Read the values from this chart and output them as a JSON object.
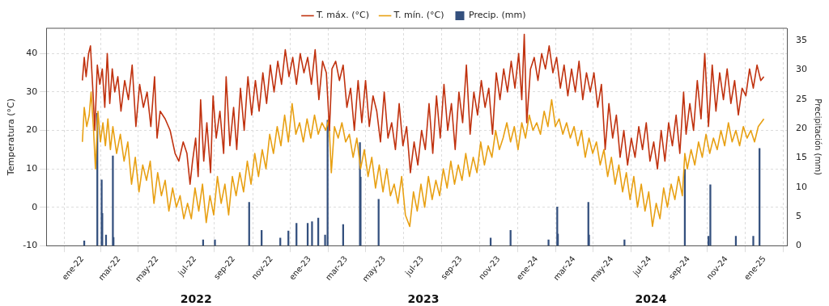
{
  "chart_data": {
    "type": "line",
    "xlim": [
      "2021-11-04",
      "2025-02-06"
    ],
    "xticks": [
      {
        "value": "2022-01-01",
        "label": "ene-22"
      },
      {
        "value": "2022-03-01",
        "label": "mar-22"
      },
      {
        "value": "2022-05-01",
        "label": "may-22"
      },
      {
        "value": "2022-07-01",
        "label": "jul-22"
      },
      {
        "value": "2022-09-01",
        "label": "sep-22"
      },
      {
        "value": "2022-11-01",
        "label": "nov-22"
      },
      {
        "value": "2023-01-01",
        "label": "ene-23"
      },
      {
        "value": "2023-03-01",
        "label": "mar-23"
      },
      {
        "value": "2023-05-01",
        "label": "may-23"
      },
      {
        "value": "2023-07-01",
        "label": "jul-23"
      },
      {
        "value": "2023-09-01",
        "label": "sep-23"
      },
      {
        "value": "2023-11-01",
        "label": "nov-23"
      },
      {
        "value": "2024-01-01",
        "label": "ene-24"
      },
      {
        "value": "2024-03-01",
        "label": "mar-24"
      },
      {
        "value": "2024-05-01",
        "label": "may-24"
      },
      {
        "value": "2024-07-01",
        "label": "jul-24"
      },
      {
        "value": "2024-09-01",
        "label": "sep-24"
      },
      {
        "value": "2024-11-01",
        "label": "nov-24"
      },
      {
        "value": "2025-01-01",
        "label": "ene-25"
      }
    ],
    "ylim": [
      -10,
      46.6
    ],
    "yticks": [
      -10,
      0,
      10,
      20,
      30,
      40
    ],
    "y2lim": [
      0,
      37.1
    ],
    "y2ticks": [
      0,
      5,
      10,
      15,
      20,
      25,
      30,
      35
    ],
    "ylabel": "Temperatura (°C)",
    "y2label": "Precipitación (mm)",
    "grid": true,
    "legend": "top",
    "marker": "none",
    "annotations": [
      "2022",
      "2023",
      "2024"
    ],
    "series": [
      {
        "name": "T. máx. (°C)",
        "color": "#c0320f",
        "x": [
          "2022-01-01",
          "2022-01-04",
          "2022-01-07",
          "2022-01-11",
          "2022-01-14",
          "2022-01-18",
          "2022-01-21",
          "2022-01-25",
          "2022-01-29",
          "2022-02-02",
          "2022-02-06",
          "2022-02-10",
          "2022-02-14",
          "2022-02-18",
          "2022-02-22",
          "2022-02-27",
          "2022-03-04",
          "2022-03-10",
          "2022-03-16",
          "2022-03-22",
          "2022-03-28",
          "2022-04-03",
          "2022-04-09",
          "2022-04-15",
          "2022-04-21",
          "2022-04-27",
          "2022-05-01",
          "2022-05-06",
          "2022-05-14",
          "2022-05-22",
          "2022-05-30",
          "2022-06-05",
          "2022-06-12",
          "2022-06-18",
          "2022-06-23",
          "2022-06-27",
          "2022-07-02",
          "2022-07-06",
          "2022-07-10",
          "2022-07-15",
          "2022-07-20",
          "2022-07-26",
          "2022-07-30",
          "2022-08-04",
          "2022-08-10",
          "2022-08-16",
          "2022-08-20",
          "2022-08-26",
          "2022-09-01",
          "2022-09-06",
          "2022-09-12",
          "2022-09-18",
          "2022-09-24",
          "2022-09-30",
          "2022-10-06",
          "2022-10-12",
          "2022-10-18",
          "2022-10-24",
          "2022-10-30",
          "2022-11-05",
          "2022-11-11",
          "2022-11-17",
          "2022-11-23",
          "2022-11-29",
          "2022-12-05",
          "2022-12-11",
          "2022-12-17",
          "2022-12-23",
          "2022-12-29",
          "2023-01-04",
          "2023-01-10",
          "2023-01-16",
          "2023-01-22",
          "2023-01-28",
          "2023-02-02",
          "2023-02-06",
          "2023-02-12",
          "2023-02-18",
          "2023-02-24",
          "2023-03-02",
          "2023-03-08",
          "2023-03-14",
          "2023-03-20",
          "2023-03-26",
          "2023-04-01",
          "2023-04-07",
          "2023-04-13",
          "2023-04-19",
          "2023-04-25",
          "2023-05-01",
          "2023-05-07",
          "2023-05-13",
          "2023-05-19",
          "2023-05-25",
          "2023-05-31",
          "2023-06-06",
          "2023-06-12",
          "2023-06-18",
          "2023-06-24",
          "2023-06-30",
          "2023-07-06",
          "2023-07-12",
          "2023-07-18",
          "2023-07-24",
          "2023-07-30",
          "2023-08-05",
          "2023-08-11",
          "2023-08-17",
          "2023-08-23",
          "2023-08-29",
          "2023-09-04",
          "2023-09-10",
          "2023-09-16",
          "2023-09-22",
          "2023-09-28",
          "2023-10-04",
          "2023-10-10",
          "2023-10-16",
          "2023-10-22",
          "2023-10-28",
          "2023-11-03",
          "2023-11-09",
          "2023-11-15",
          "2023-11-21",
          "2023-11-27",
          "2023-12-03",
          "2023-12-08",
          "2023-12-12",
          "2023-12-16",
          "2023-12-22",
          "2023-12-28",
          "2024-01-03",
          "2024-01-09",
          "2024-01-15",
          "2024-01-21",
          "2024-01-27",
          "2024-02-02",
          "2024-02-08",
          "2024-02-14",
          "2024-02-20",
          "2024-02-26",
          "2024-03-03",
          "2024-03-09",
          "2024-03-15",
          "2024-03-21",
          "2024-03-27",
          "2024-04-02",
          "2024-04-08",
          "2024-04-14",
          "2024-04-20",
          "2024-04-26",
          "2024-05-02",
          "2024-05-08",
          "2024-05-14",
          "2024-05-20",
          "2024-05-26",
          "2024-06-01",
          "2024-06-07",
          "2024-06-13",
          "2024-06-19",
          "2024-06-25",
          "2024-07-01",
          "2024-07-07",
          "2024-07-13",
          "2024-07-19",
          "2024-07-25",
          "2024-07-31",
          "2024-08-06",
          "2024-08-12",
          "2024-08-18",
          "2024-08-24",
          "2024-08-28",
          "2024-09-03",
          "2024-09-09",
          "2024-09-15",
          "2024-09-21",
          "2024-09-27",
          "2024-10-03",
          "2024-10-09",
          "2024-10-15",
          "2024-10-21",
          "2024-10-27",
          "2024-11-02",
          "2024-11-08",
          "2024-11-14",
          "2024-11-20",
          "2024-11-26",
          "2024-12-02",
          "2024-12-08",
          "2024-12-14",
          "2024-12-20",
          "2024-12-26",
          "2024-12-31"
        ],
        "values": [
          33,
          39,
          34,
          40,
          42,
          30,
          20,
          37,
          32,
          36,
          26,
          40,
          27,
          36,
          30,
          34,
          25,
          33,
          28,
          37,
          21,
          32,
          26,
          30,
          21,
          34,
          18,
          25,
          23,
          20,
          14,
          12,
          17,
          14,
          6,
          12,
          18,
          8,
          28,
          12,
          22,
          9,
          29,
          18,
          25,
          14,
          34,
          16,
          26,
          15,
          31,
          20,
          34,
          24,
          33,
          25,
          35,
          27,
          37,
          30,
          38,
          32,
          41,
          34,
          39,
          32,
          40,
          35,
          39,
          32,
          41,
          28,
          38,
          35,
          20,
          36,
          38,
          33,
          37,
          26,
          31,
          20,
          33,
          22,
          33,
          21,
          29,
          25,
          17,
          30,
          18,
          22,
          15,
          27,
          16,
          21,
          9,
          17,
          11,
          20,
          15,
          27,
          14,
          29,
          18,
          32,
          20,
          27,
          15,
          30,
          22,
          37,
          19,
          30,
          24,
          33,
          26,
          31,
          19,
          35,
          28,
          36,
          30,
          38,
          31,
          40,
          28,
          45,
          22,
          36,
          39,
          33,
          40,
          36,
          42,
          35,
          39,
          31,
          37,
          29,
          36,
          30,
          38,
          28,
          35,
          30,
          35,
          26,
          32,
          15,
          27,
          18,
          24,
          13,
          20,
          11,
          18,
          13,
          21,
          15,
          22,
          12,
          17,
          10,
          20,
          12,
          22,
          16,
          24,
          14,
          30,
          19,
          27,
          20,
          33,
          23,
          40,
          21,
          37,
          25,
          35,
          28,
          36,
          27,
          33,
          24,
          31,
          29,
          36,
          31,
          37,
          33,
          34
        ]
      },
      {
        "name": "T. mín. (°C)",
        "color": "#e8a013",
        "x": [
          "2022-01-01",
          "2022-01-04",
          "2022-01-08",
          "2022-01-12",
          "2022-01-15",
          "2022-01-19",
          "2022-01-22",
          "2022-01-26",
          "2022-01-30",
          "2022-02-03",
          "2022-02-07",
          "2022-02-11",
          "2022-02-15",
          "2022-02-19",
          "2022-02-25",
          "2022-03-03",
          "2022-03-09",
          "2022-03-15",
          "2022-03-21",
          "2022-03-27",
          "2022-04-02",
          "2022-04-08",
          "2022-04-14",
          "2022-04-20",
          "2022-04-26",
          "2022-05-02",
          "2022-05-08",
          "2022-05-14",
          "2022-05-20",
          "2022-05-26",
          "2022-06-01",
          "2022-06-07",
          "2022-06-13",
          "2022-06-19",
          "2022-06-25",
          "2022-07-01",
          "2022-07-07",
          "2022-07-13",
          "2022-07-19",
          "2022-07-25",
          "2022-07-31",
          "2022-08-06",
          "2022-08-12",
          "2022-08-18",
          "2022-08-24",
          "2022-08-30",
          "2022-09-05",
          "2022-09-11",
          "2022-09-17",
          "2022-09-23",
          "2022-09-29",
          "2022-10-05",
          "2022-10-11",
          "2022-10-17",
          "2022-10-23",
          "2022-10-29",
          "2022-11-04",
          "2022-11-10",
          "2022-11-16",
          "2022-11-22",
          "2022-11-28",
          "2022-12-04",
          "2022-12-10",
          "2022-12-16",
          "2022-12-22",
          "2022-12-28",
          "2023-01-03",
          "2023-01-09",
          "2023-01-15",
          "2023-01-21",
          "2023-01-27",
          "2023-02-01",
          "2023-02-05",
          "2023-02-10",
          "2023-02-16",
          "2023-02-22",
          "2023-02-28",
          "2023-03-06",
          "2023-03-12",
          "2023-03-18",
          "2023-03-24",
          "2023-03-30",
          "2023-04-05",
          "2023-04-11",
          "2023-04-17",
          "2023-04-23",
          "2023-04-29",
          "2023-05-05",
          "2023-05-11",
          "2023-05-17",
          "2023-05-23",
          "2023-05-29",
          "2023-06-04",
          "2023-06-11",
          "2023-06-17",
          "2023-06-23",
          "2023-06-29",
          "2023-07-05",
          "2023-07-11",
          "2023-07-17",
          "2023-07-23",
          "2023-07-29",
          "2023-08-04",
          "2023-08-10",
          "2023-08-16",
          "2023-08-22",
          "2023-08-28",
          "2023-09-03",
          "2023-09-09",
          "2023-09-15",
          "2023-09-21",
          "2023-09-27",
          "2023-10-03",
          "2023-10-09",
          "2023-10-15",
          "2023-10-21",
          "2023-10-27",
          "2023-11-02",
          "2023-11-08",
          "2023-11-14",
          "2023-11-20",
          "2023-11-26",
          "2023-12-02",
          "2023-12-08",
          "2023-12-14",
          "2023-12-20",
          "2023-12-26",
          "2024-01-01",
          "2024-01-07",
          "2024-01-13",
          "2024-01-19",
          "2024-01-25",
          "2024-01-31",
          "2024-02-06",
          "2024-02-12",
          "2024-02-18",
          "2024-02-24",
          "2024-03-01",
          "2024-03-07",
          "2024-03-13",
          "2024-03-19",
          "2024-03-25",
          "2024-03-31",
          "2024-04-06",
          "2024-04-12",
          "2024-04-18",
          "2024-04-24",
          "2024-04-30",
          "2024-05-06",
          "2024-05-12",
          "2024-05-18",
          "2024-05-24",
          "2024-05-30",
          "2024-06-05",
          "2024-06-11",
          "2024-06-17",
          "2024-06-23",
          "2024-06-29",
          "2024-07-05",
          "2024-07-11",
          "2024-07-17",
          "2024-07-23",
          "2024-07-29",
          "2024-08-04",
          "2024-08-10",
          "2024-08-16",
          "2024-08-22",
          "2024-08-26",
          "2024-08-30",
          "2024-09-05",
          "2024-09-11",
          "2024-09-17",
          "2024-09-23",
          "2024-09-29",
          "2024-10-05",
          "2024-10-11",
          "2024-10-17",
          "2024-10-23",
          "2024-10-29",
          "2024-11-04",
          "2024-11-10",
          "2024-11-16",
          "2024-11-22",
          "2024-11-28",
          "2024-12-04",
          "2024-12-10",
          "2024-12-16",
          "2024-12-22",
          "2024-12-31"
        ],
        "values": [
          17,
          26,
          21,
          24,
          30,
          20,
          10,
          25,
          17,
          22,
          16,
          23,
          15,
          21,
          14,
          19,
          12,
          17,
          6,
          13,
          4,
          11,
          7,
          12,
          1,
          9,
          3,
          7,
          -1,
          5,
          0,
          3,
          -3,
          1,
          -3,
          5,
          -1,
          6,
          -4,
          3,
          -2,
          8,
          1,
          6,
          -2,
          8,
          3,
          9,
          4,
          12,
          6,
          14,
          8,
          15,
          10,
          19,
          14,
          21,
          16,
          24,
          17,
          27,
          19,
          22,
          17,
          23,
          18,
          24,
          19,
          22,
          20,
          23,
          9,
          21,
          18,
          22,
          17,
          19,
          13,
          18,
          10,
          15,
          8,
          13,
          5,
          11,
          4,
          10,
          3,
          6,
          1,
          8,
          -2,
          -5,
          4,
          -1,
          6,
          0,
          8,
          2,
          7,
          3,
          10,
          5,
          12,
          6,
          11,
          7,
          14,
          8,
          13,
          9,
          17,
          11,
          16,
          13,
          20,
          15,
          18,
          22,
          17,
          21,
          15,
          22,
          18,
          24,
          20,
          22,
          19,
          25,
          21,
          28,
          21,
          23,
          19,
          22,
          18,
          21,
          16,
          20,
          13,
          18,
          14,
          17,
          11,
          15,
          8,
          13,
          6,
          11,
          4,
          9,
          2,
          8,
          0,
          6,
          -1,
          4,
          -5,
          1,
          -3,
          5,
          0,
          6,
          2,
          8,
          3,
          14,
          10,
          15,
          11,
          17,
          13,
          19,
          14,
          18,
          15,
          20,
          16,
          22,
          17,
          20,
          16,
          21,
          18,
          20,
          17,
          21,
          23
        ]
      },
      {
        "name": "Precip. (mm)",
        "type": "bar",
        "axis": "y2",
        "color": "#34507e",
        "x": [
          "2022-01-04",
          "2022-01-25",
          "2022-02-01",
          "2022-02-02",
          "2022-02-08",
          "2022-02-19",
          "2022-02-20",
          "2022-07-14",
          "2022-08-02",
          "2022-09-25",
          "2022-09-26",
          "2022-10-16",
          "2022-11-15",
          "2022-11-28",
          "2022-12-11",
          "2022-12-29",
          "2023-01-05",
          "2023-01-15",
          "2023-01-26",
          "2023-01-30",
          "2023-02-24",
          "2023-03-23",
          "2023-03-24",
          "2023-04-22",
          "2023-10-19",
          "2023-11-20",
          "2024-01-20",
          "2024-02-03",
          "2024-02-04",
          "2024-03-24",
          "2024-03-25",
          "2024-05-21",
          "2024-08-26",
          "2024-10-03",
          "2024-10-06",
          "2024-11-16",
          "2024-12-14",
          "2024-12-23",
          "2024-12-24"
        ],
        "values": [
          0.8,
          22.6,
          11.2,
          5.5,
          1.8,
          15.3,
          1.4,
          1,
          1,
          null,
          7.4,
          2.6,
          1.3,
          2.5,
          3.8,
          3.8,
          4.1,
          4.7,
          1.8,
          21.4,
          3.6,
          17.6,
          11.7,
          7.9,
          1.3,
          2.6,
          1,
          6.6,
          2,
          7.4,
          1.8,
          1,
          13,
          1.6,
          10.4,
          1.6,
          1.6,
          null,
          16.6
        ]
      }
    ]
  }
}
